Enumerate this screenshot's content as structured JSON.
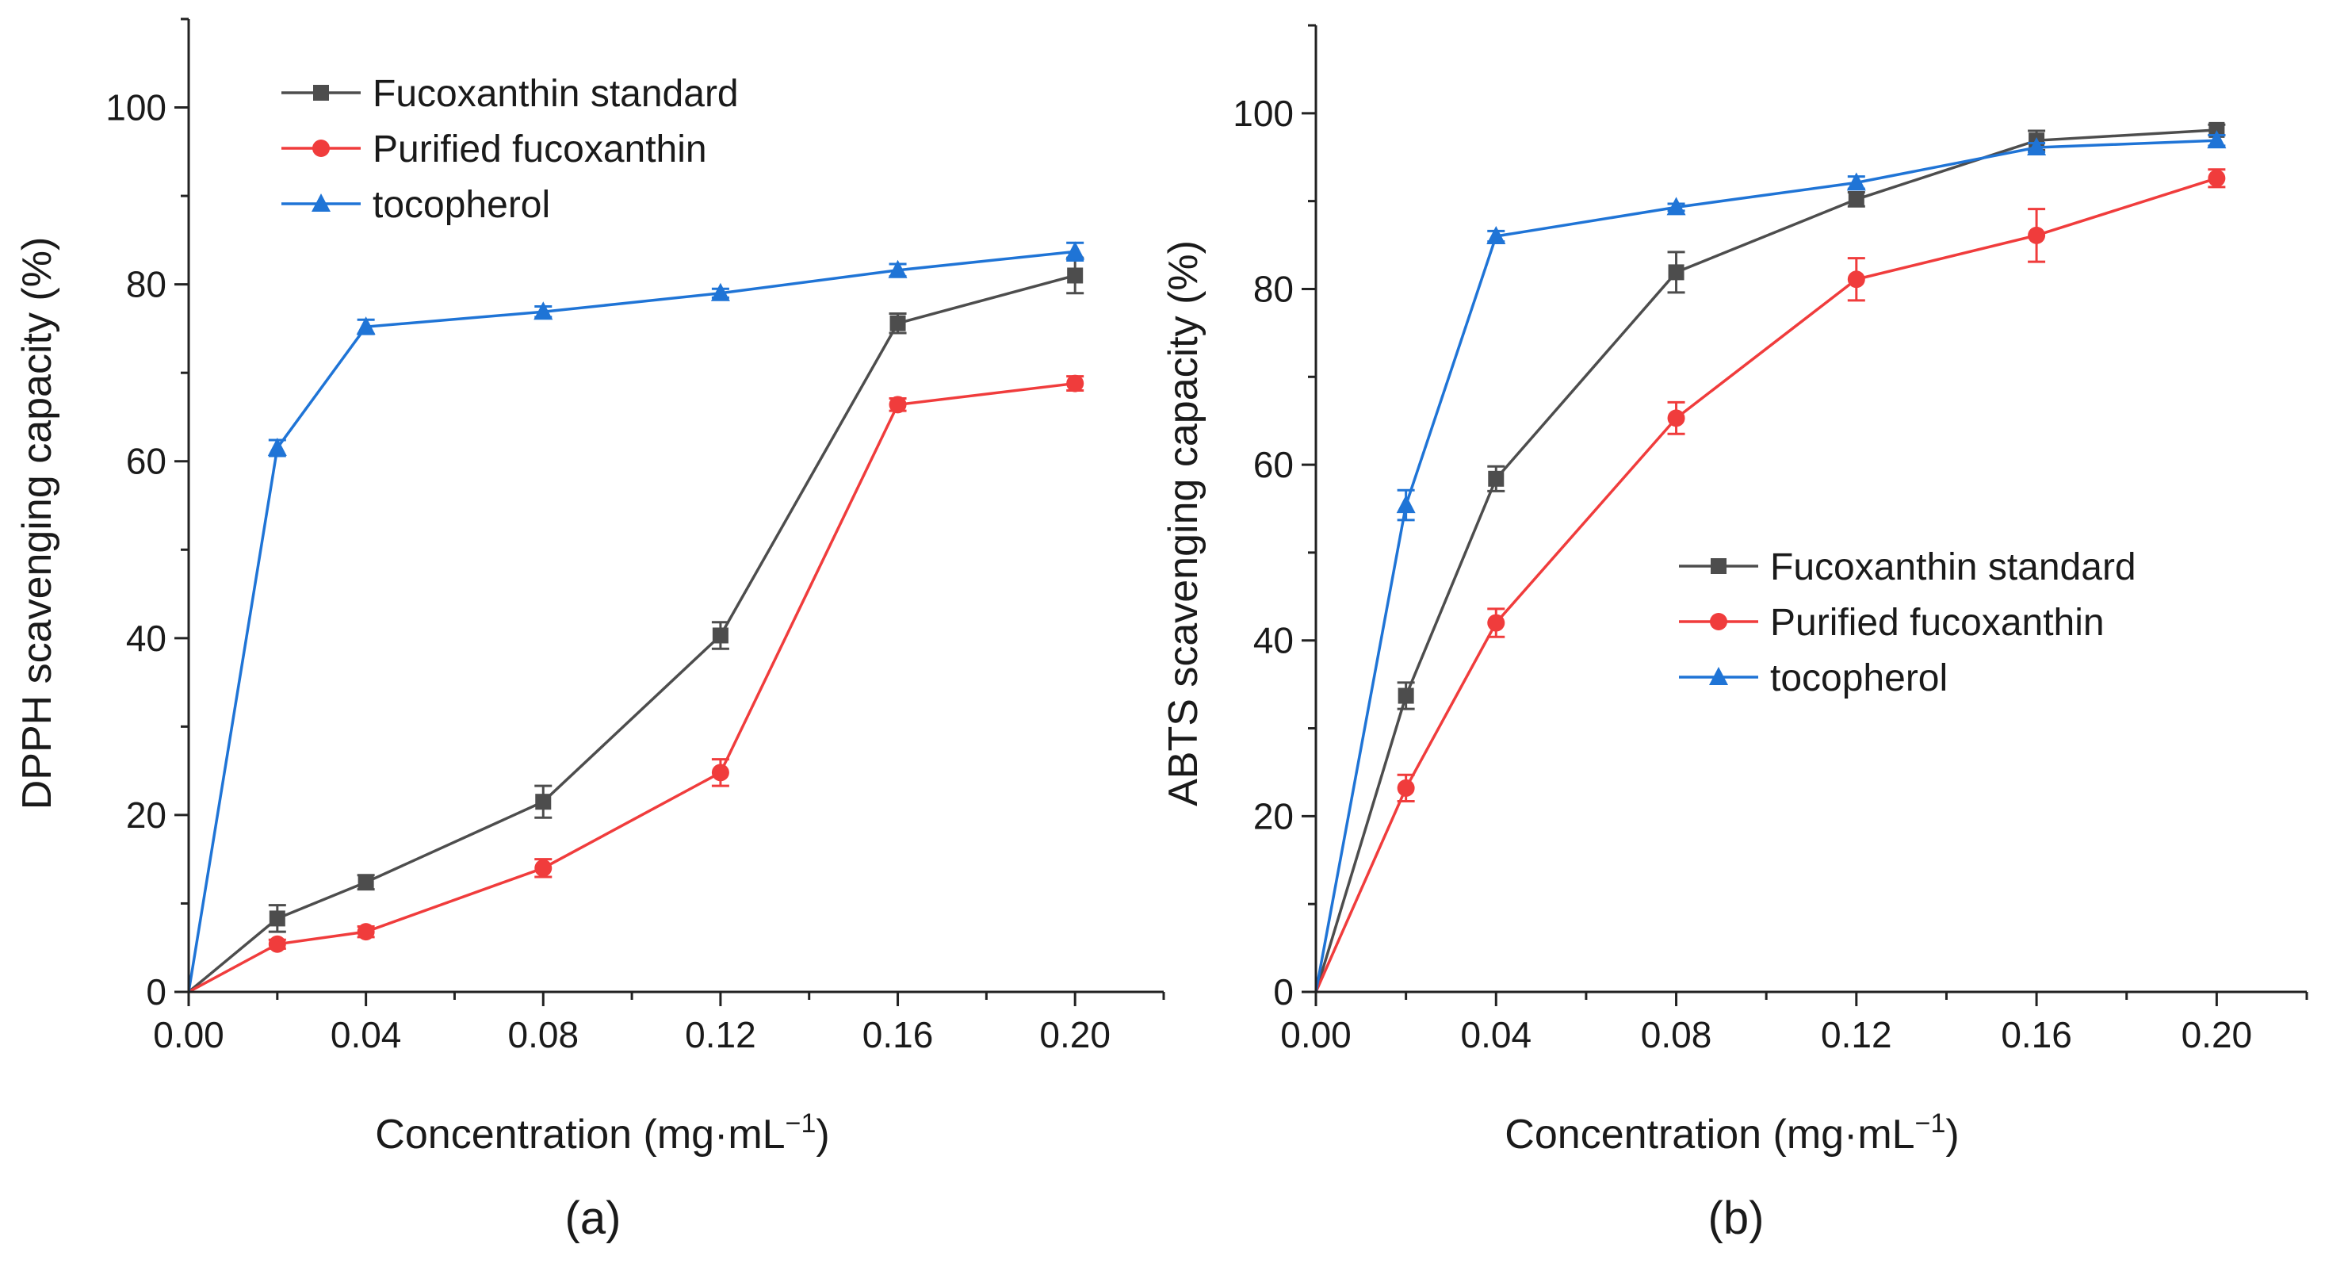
{
  "chart_data": [
    {
      "type": "line",
      "panel_label": "(a)",
      "xlabel": "Concentration (mg·mL",
      "xlabel_sup": "−1",
      "xlabel_end": ")",
      "ylabel": "DPPH scavenging capacity (%)",
      "xlim": [
        0,
        0.22
      ],
      "ylim": [
        0,
        110
      ],
      "xticks": [
        "0.00",
        "0.04",
        "0.08",
        "0.12",
        "0.16",
        "0.20"
      ],
      "xtick_values": [
        0,
        0.04,
        0.08,
        0.12,
        0.16,
        0.2
      ],
      "yticks": [
        "0",
        "20",
        "40",
        "60",
        "80",
        "100"
      ],
      "ytick_values": [
        0,
        20,
        40,
        60,
        80,
        100
      ],
      "grid": false,
      "legend_position": "top-left",
      "x": [
        0,
        0.02,
        0.04,
        0.08,
        0.12,
        0.16,
        0.2
      ],
      "series": [
        {
          "name": "Fucoxanthin standard",
          "color": "#4d4d4d",
          "marker": "square",
          "values": [
            0,
            8.3,
            12.4,
            21.5,
            40.3,
            75.6,
            81.0
          ],
          "errors": [
            0,
            1.5,
            0.8,
            1.8,
            1.5,
            1.1,
            2.0
          ]
        },
        {
          "name": "Purified fucoxanthin",
          "color": "#f03c3c",
          "marker": "circle",
          "values": [
            0,
            5.4,
            6.8,
            14.0,
            24.8,
            66.4,
            68.8
          ],
          "errors": [
            0,
            0.5,
            0.6,
            1.0,
            1.5,
            0.7,
            0.8
          ]
        },
        {
          "name": "tocopherol",
          "color": "#1f74d6",
          "marker": "triangle",
          "values": [
            0,
            61.5,
            75.2,
            76.9,
            79.0,
            81.6,
            83.7
          ],
          "errors": [
            0,
            0.9,
            0.8,
            0.6,
            0.5,
            0.7,
            1.0
          ]
        }
      ]
    },
    {
      "type": "line",
      "panel_label": "(b)",
      "xlabel": "Concentration (mg·mL",
      "xlabel_sup": "−1",
      "xlabel_end": ")",
      "ylabel": "ABTS scavenging capacity (%)",
      "xlim": [
        0,
        0.22
      ],
      "ylim": [
        0,
        110
      ],
      "xticks": [
        "0.00",
        "0.04",
        "0.08",
        "0.12",
        "0.16",
        "0.20"
      ],
      "xtick_values": [
        0,
        0.04,
        0.08,
        0.12,
        0.16,
        0.2
      ],
      "yticks": [
        "0",
        "20",
        "40",
        "60",
        "80",
        "100"
      ],
      "ytick_values": [
        0,
        20,
        40,
        60,
        80,
        100
      ],
      "grid": false,
      "legend_position": "center-right",
      "x": [
        0,
        0.02,
        0.04,
        0.08,
        0.12,
        0.16,
        0.2
      ],
      "series": [
        {
          "name": "Fucoxanthin standard",
          "color": "#4d4d4d",
          "marker": "square",
          "values": [
            0,
            33.7,
            58.4,
            81.9,
            90.2,
            96.9,
            98.1
          ],
          "errors": [
            0,
            1.5,
            1.4,
            2.3,
            0.8,
            1.1,
            0.6
          ]
        },
        {
          "name": "Purified fucoxanthin",
          "color": "#f03c3c",
          "marker": "circle",
          "values": [
            0,
            23.2,
            42.0,
            65.3,
            81.1,
            86.1,
            92.6
          ],
          "errors": [
            0,
            1.5,
            1.6,
            1.8,
            2.4,
            3.0,
            1.0
          ]
        },
        {
          "name": "tocopherol",
          "color": "#1f74d6",
          "marker": "triangle",
          "values": [
            0,
            55.4,
            86.0,
            89.3,
            92.1,
            96.1,
            96.9
          ],
          "errors": [
            0,
            1.7,
            0.6,
            0.4,
            0.7,
            0.5,
            0.6
          ]
        }
      ]
    }
  ]
}
